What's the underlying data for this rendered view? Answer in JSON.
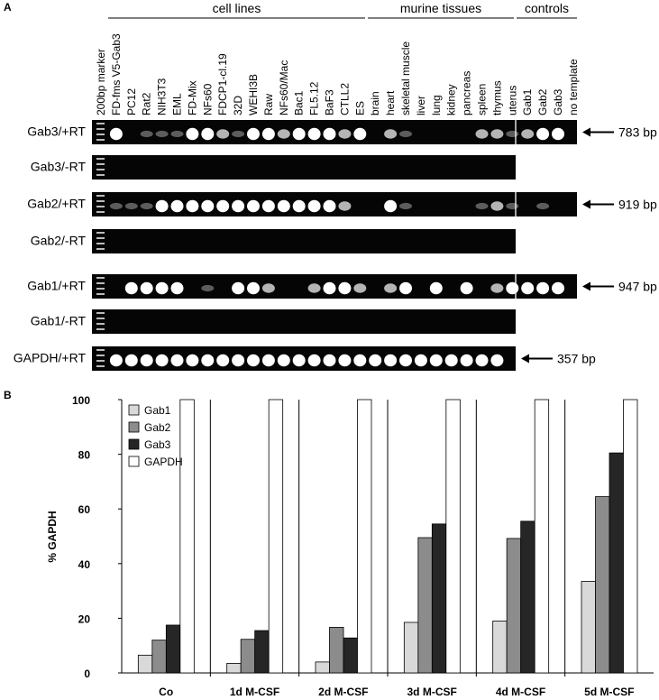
{
  "panel_a": {
    "panel_label": "A",
    "groups": [
      "cell lines",
      "murine tissues",
      "controls"
    ],
    "lanes": [
      "200bp marker",
      "FD-fms V5-Gab3",
      "PC12",
      "Rat2",
      "NIH3T3",
      "EML",
      "FD-Mix",
      "NFs60",
      "FDCP1-cl.19",
      "32D",
      "WEHI3B",
      "Raw",
      "NFs60/Mac",
      "Bac1",
      "FL5.12",
      "BaF3",
      "CTLL2",
      "ES",
      "brain",
      "heart",
      "skeletal muscle",
      "liver",
      "lung",
      "kidney",
      "pancreas",
      "spleen",
      "thymus",
      "uterus",
      "Gab1",
      "Gab2",
      "Gab3",
      "no template"
    ],
    "rows": [
      {
        "label": "Gab3/+RT",
        "size": "783 bp"
      },
      {
        "label": "Gab3/-RT"
      },
      {
        "label": "Gab2/+RT",
        "size": "919 bp"
      },
      {
        "label": "Gab2/-RT"
      },
      {
        "label": "Gab1/+RT",
        "size": "947 bp"
      },
      {
        "label": "Gab1/-RT"
      },
      {
        "label": "GAPDH/+RT",
        "size": "357 bp"
      }
    ]
  },
  "chart_data": {
    "type": "bar",
    "panel_label": "B",
    "ylabel": "% GAPDH",
    "categories": [
      "Co",
      "1d M-CSF",
      "2d M-CSF",
      "3d M-CSF",
      "4d M-CSF",
      "5d M-CSF"
    ],
    "series": [
      {
        "name": "Gab1",
        "color": "#d9d9d9",
        "values": [
          6.5,
          3.5,
          4,
          18.5,
          19,
          33.5
        ]
      },
      {
        "name": "Gab2",
        "color": "#8c8c8c",
        "values": [
          12,
          12.3,
          16.7,
          49.5,
          49.2,
          64.5
        ]
      },
      {
        "name": "Gab3",
        "color": "#262626",
        "values": [
          17.5,
          15.5,
          12.8,
          54.5,
          55.5,
          80.5
        ]
      },
      {
        "name": "GAPDH",
        "color": "#ffffff",
        "values": [
          100,
          100,
          100,
          100,
          100,
          100
        ]
      }
    ],
    "ylim": [
      0,
      100
    ],
    "yticks": [
      0,
      20,
      40,
      60,
      80,
      100
    ]
  }
}
